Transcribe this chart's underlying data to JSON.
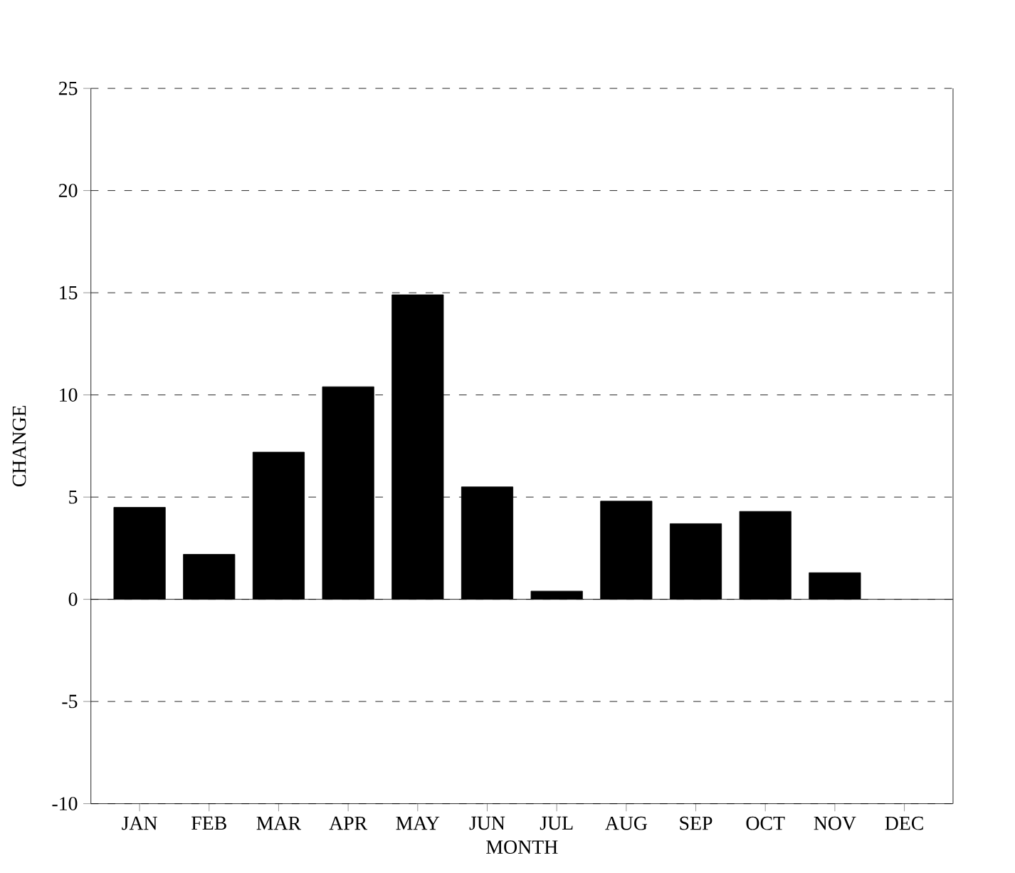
{
  "chart_data": {
    "type": "bar",
    "xlabel": "MONTH",
    "ylabel": "CHANGE",
    "categories": [
      "JAN",
      "FEB",
      "MAR",
      "APR",
      "MAY",
      "JUN",
      "JUL",
      "AUG",
      "SEP",
      "OCT",
      "NOV",
      "DEC"
    ],
    "values": [
      4.5,
      2.2,
      7.2,
      10.4,
      14.9,
      5.5,
      0.4,
      4.8,
      3.7,
      4.3,
      1.3,
      null
    ],
    "color": "#000000",
    "ylim": [
      -10,
      25
    ],
    "yticks": [
      -10,
      -5,
      0,
      5,
      10,
      15,
      20,
      25
    ],
    "grid": "y"
  }
}
